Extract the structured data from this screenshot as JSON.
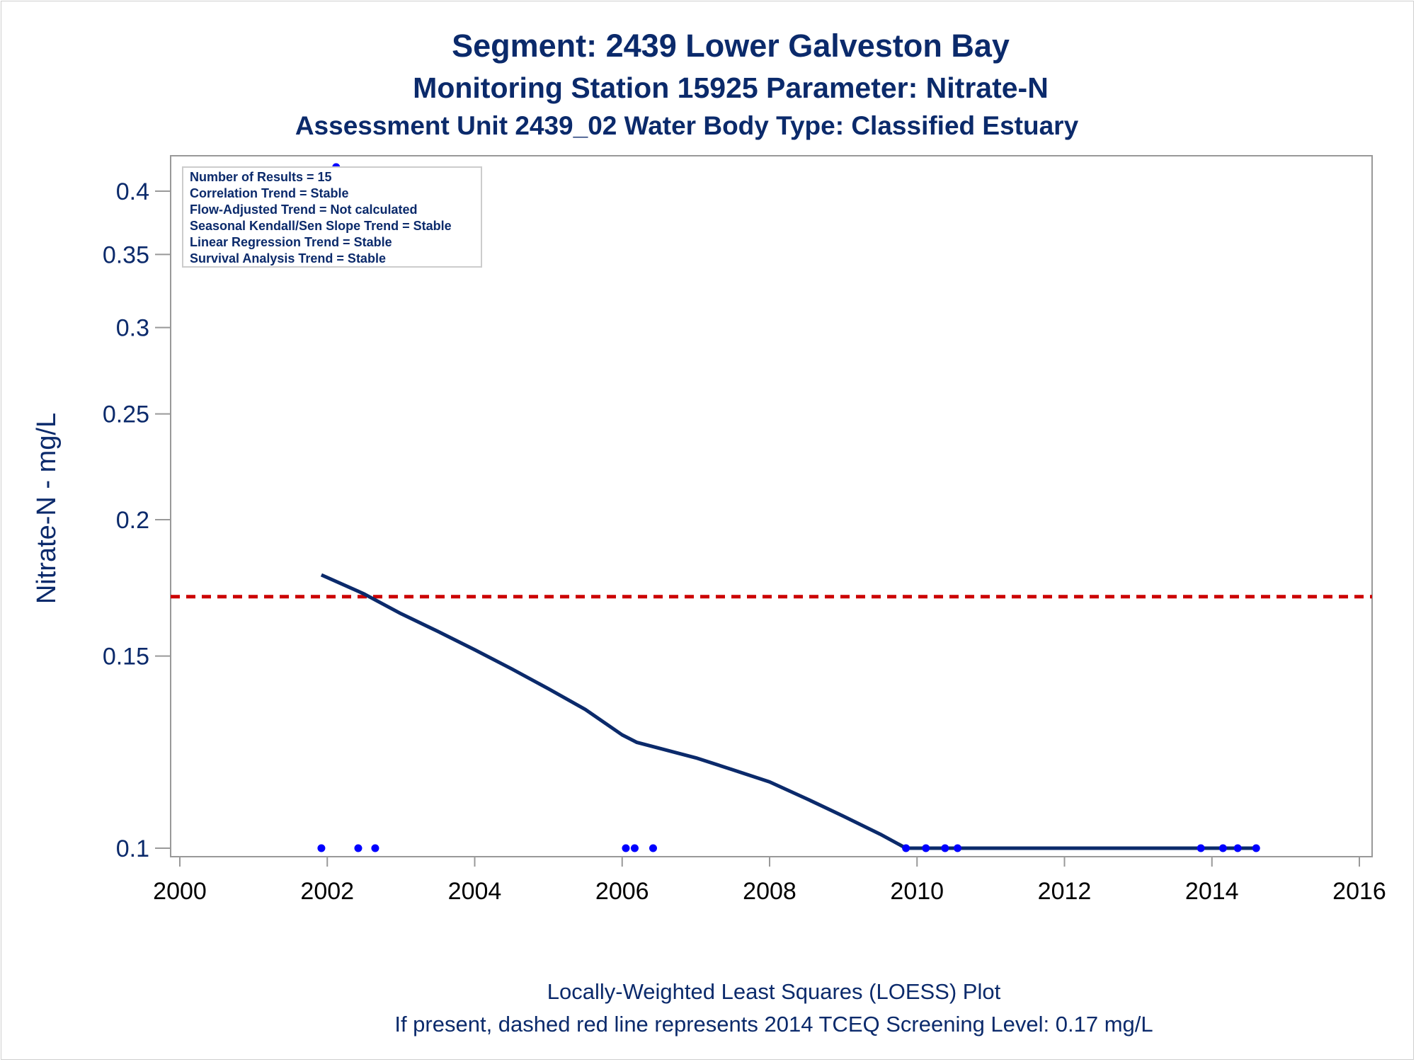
{
  "titles": {
    "line1": "Segment: 2439  Lower Galveston Bay",
    "line2": "Monitoring Station 15925 Parameter: Nitrate-N",
    "line3": "Assessment Unit 2439_02   Water Body Type: Classified Estuary"
  },
  "stats_box": {
    "lines": [
      "Number of Results = 15",
      "Correlation Trend = Stable",
      "Flow-Adjusted Trend = Not calculated",
      "Seasonal Kendall/Sen Slope Trend = Stable",
      "Linear Regression Trend = Stable",
      "Survival Analysis Trend = Stable"
    ]
  },
  "footnotes": {
    "line1": "Locally-Weighted Least Squares (LOESS) Plot",
    "line2": "If present, dashed red line represents 2014 TCEQ Screening Level: 0.17 mg/L"
  },
  "colors": {
    "text": "#0b2a6b",
    "loess_line": "#0b2a6b",
    "points": "#0000ff",
    "screening_line": "#cc0000",
    "axis": "#999999"
  },
  "chart_data": {
    "type": "line",
    "ylabel": "Nitrate-N - mg/L",
    "xlabel": "",
    "y_scale": "log",
    "xlim": [
      2000,
      2016
    ],
    "ylim": [
      0.098,
      0.42
    ],
    "x_ticks": [
      2000,
      2002,
      2004,
      2006,
      2008,
      2010,
      2012,
      2014,
      2016
    ],
    "y_ticks": [
      0.1,
      0.15,
      0.2,
      0.25,
      0.3,
      0.35,
      0.4
    ],
    "screening_level": 0.17,
    "points": {
      "x": [
        2001.92,
        2002.42,
        2002.65,
        2006.05,
        2006.17,
        2006.42,
        2009.85,
        2010.12,
        2010.38,
        2010.55,
        2013.85,
        2014.15,
        2014.35,
        2014.6,
        2002.12
      ],
      "y": [
        0.1,
        0.1,
        0.1,
        0.1,
        0.1,
        0.1,
        0.1,
        0.1,
        0.1,
        0.1,
        0.1,
        0.1,
        0.1,
        0.1,
        0.42
      ]
    },
    "loess": {
      "x": [
        2001.92,
        2002.5,
        2003.0,
        2003.5,
        2004.0,
        2004.5,
        2005.0,
        2005.5,
        2006.0,
        2006.2,
        2007.0,
        2007.5,
        2008.0,
        2008.5,
        2009.0,
        2009.5,
        2009.85,
        2010.5,
        2011.0,
        2012.0,
        2013.0,
        2014.0,
        2014.6
      ],
      "y": [
        0.178,
        0.171,
        0.164,
        0.158,
        0.152,
        0.146,
        0.14,
        0.134,
        0.127,
        0.125,
        0.121,
        0.118,
        0.115,
        0.111,
        0.107,
        0.103,
        0.1,
        0.1,
        0.1,
        0.1,
        0.1,
        0.1,
        0.1
      ]
    }
  }
}
